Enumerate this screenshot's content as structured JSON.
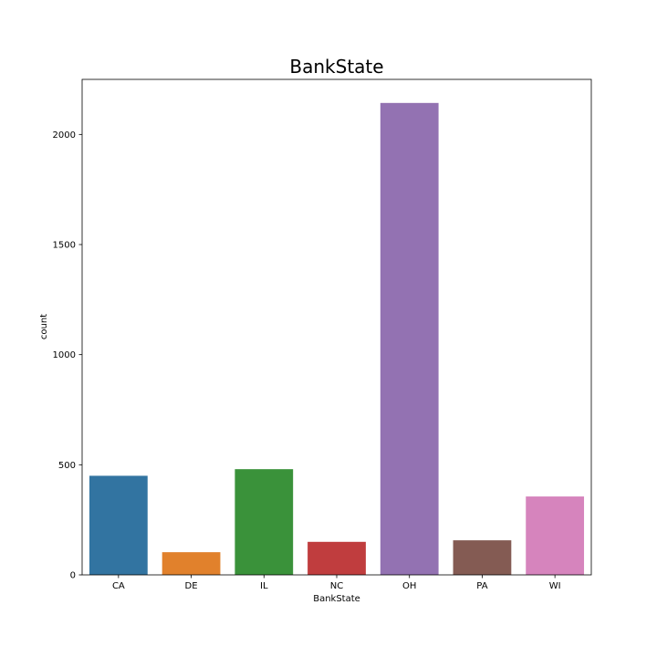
{
  "chart_data": {
    "type": "bar",
    "title": "BankState",
    "xlabel": "BankState",
    "ylabel": "count",
    "categories": [
      "CA",
      "DE",
      "IL",
      "NC",
      "OH",
      "PA",
      "WI"
    ],
    "values": [
      450,
      103,
      480,
      150,
      2143,
      157,
      356
    ],
    "colors": [
      "#3274a1",
      "#e1812c",
      "#3a923a",
      "#c03d3e",
      "#9372b2",
      "#845b53",
      "#d684bd"
    ],
    "yticks": [
      0,
      500,
      1000,
      1500,
      2000
    ],
    "ylim": [
      0,
      2250
    ],
    "grid": false,
    "legend": "none"
  }
}
